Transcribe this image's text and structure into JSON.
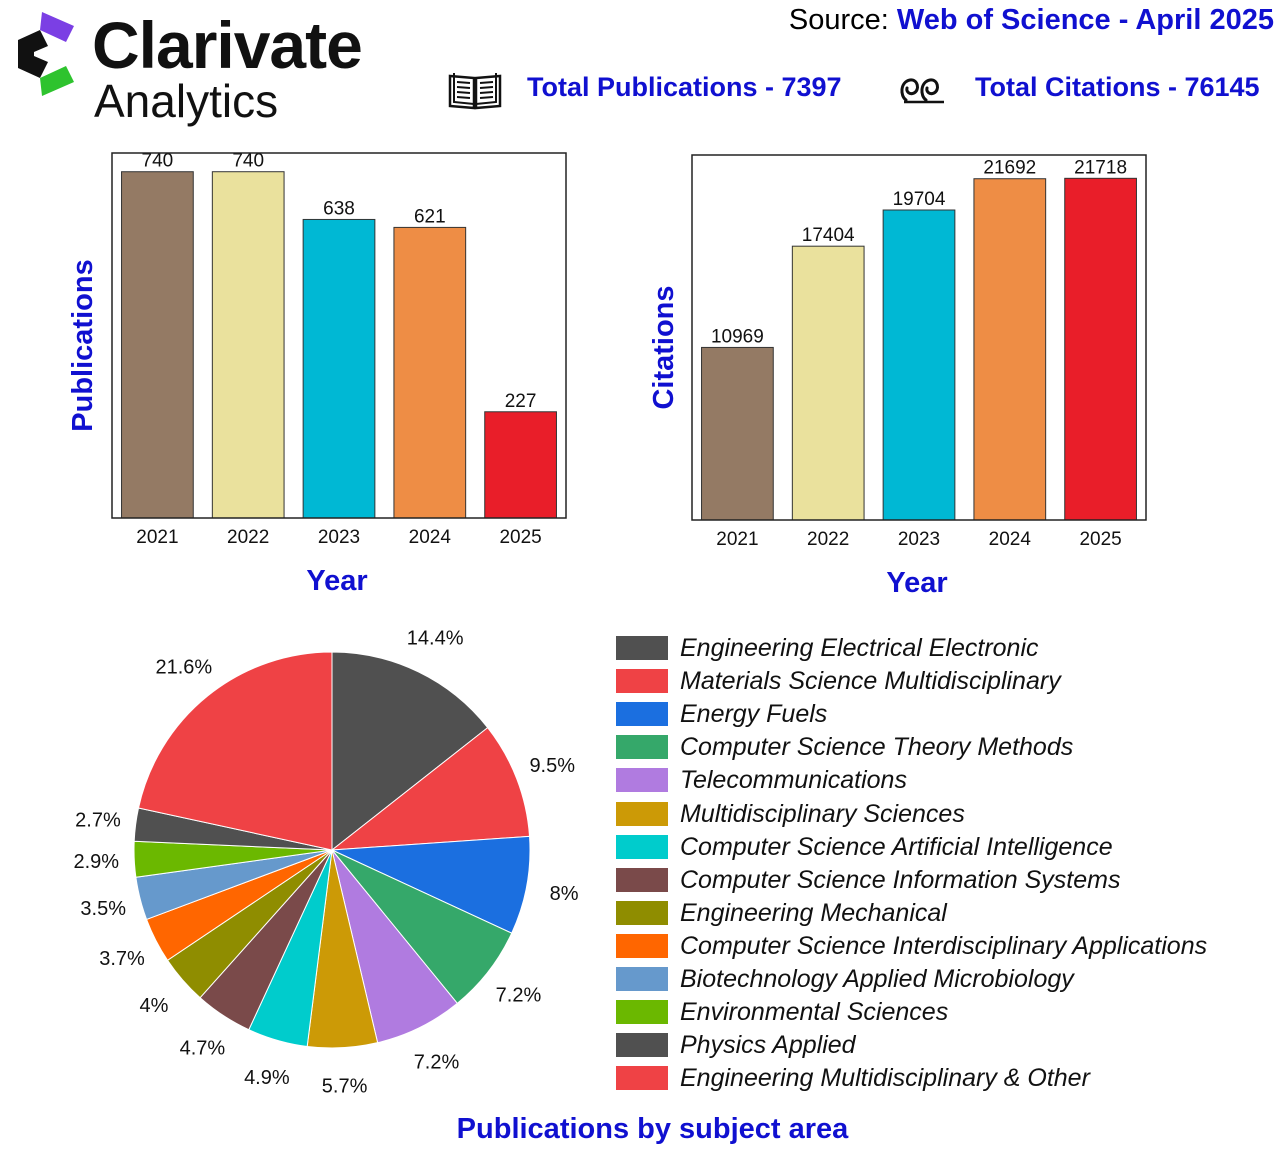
{
  "header": {
    "brand_name": "Clarivate",
    "brand_sub": "Analytics",
    "source_prefix": "Source: ",
    "source_value": "Web of Science - April 2025",
    "total_publications": "Total Publications - 7397",
    "total_citations": "Total Citations - 76145",
    "book_icon": "book-icon",
    "quote_icon": "quote-icon"
  },
  "colors": {
    "title_blue": "#1010d0",
    "bar_colors": [
      "#947a64",
      "#eae19d",
      "#00b8d4",
      "#ee8d45",
      "#e91e29"
    ]
  },
  "chart_data": [
    {
      "type": "bar",
      "categories": [
        "2021",
        "2022",
        "2023",
        "2024",
        "2025"
      ],
      "values": [
        740,
        740,
        638,
        621,
        227
      ],
      "xlabel": "Year",
      "ylabel": "Publications",
      "ylim": [
        0,
        780
      ],
      "grid": false
    },
    {
      "type": "bar",
      "categories": [
        "2021",
        "2022",
        "2023",
        "2024",
        "2025"
      ],
      "values": [
        10969,
        17404,
        19704,
        21692,
        21718
      ],
      "xlabel": "Year",
      "ylabel": "Citations",
      "ylim": [
        0,
        23200
      ],
      "grid": false
    },
    {
      "type": "pie",
      "title": "Publications by subject area",
      "legend_position": "right",
      "labels": [
        "Engineering Electrical Electronic",
        "Materials Science Multidisciplinary",
        "Energy Fuels",
        "Computer Science Theory Methods",
        "Telecommunications",
        "Multidisciplinary Sciences",
        "Computer Science Artificial Intelligence",
        "Computer Science Information Systems",
        "Engineering Mechanical",
        "Computer Science Interdisciplinary Applications",
        "Biotechnology Applied Microbiology",
        "Environmental Sciences",
        "Physics Applied",
        "Engineering Multidisciplinary & Other"
      ],
      "values": [
        14.4,
        9.5,
        8,
        7.2,
        7.2,
        5.7,
        4.9,
        4.7,
        4,
        3.7,
        3.5,
        2.9,
        2.7,
        21.6
      ],
      "value_labels": [
        "14.4%",
        "9.5%",
        "8%",
        "7.2%",
        "7.2%",
        "5.7%",
        "4.9%",
        "4.7%",
        "4%",
        "3.7%",
        "3.5%",
        "2.9%",
        "2.7%",
        "21.6%"
      ],
      "colors": [
        "#505050",
        "#ef4245",
        "#1b6fe0",
        "#35a86a",
        "#b07be0",
        "#cc9a06",
        "#00cccc",
        "#7a4a4a",
        "#8f8d00",
        "#ff6600",
        "#6699cc",
        "#6bb800",
        "#505050",
        "#ef4245"
      ]
    }
  ]
}
